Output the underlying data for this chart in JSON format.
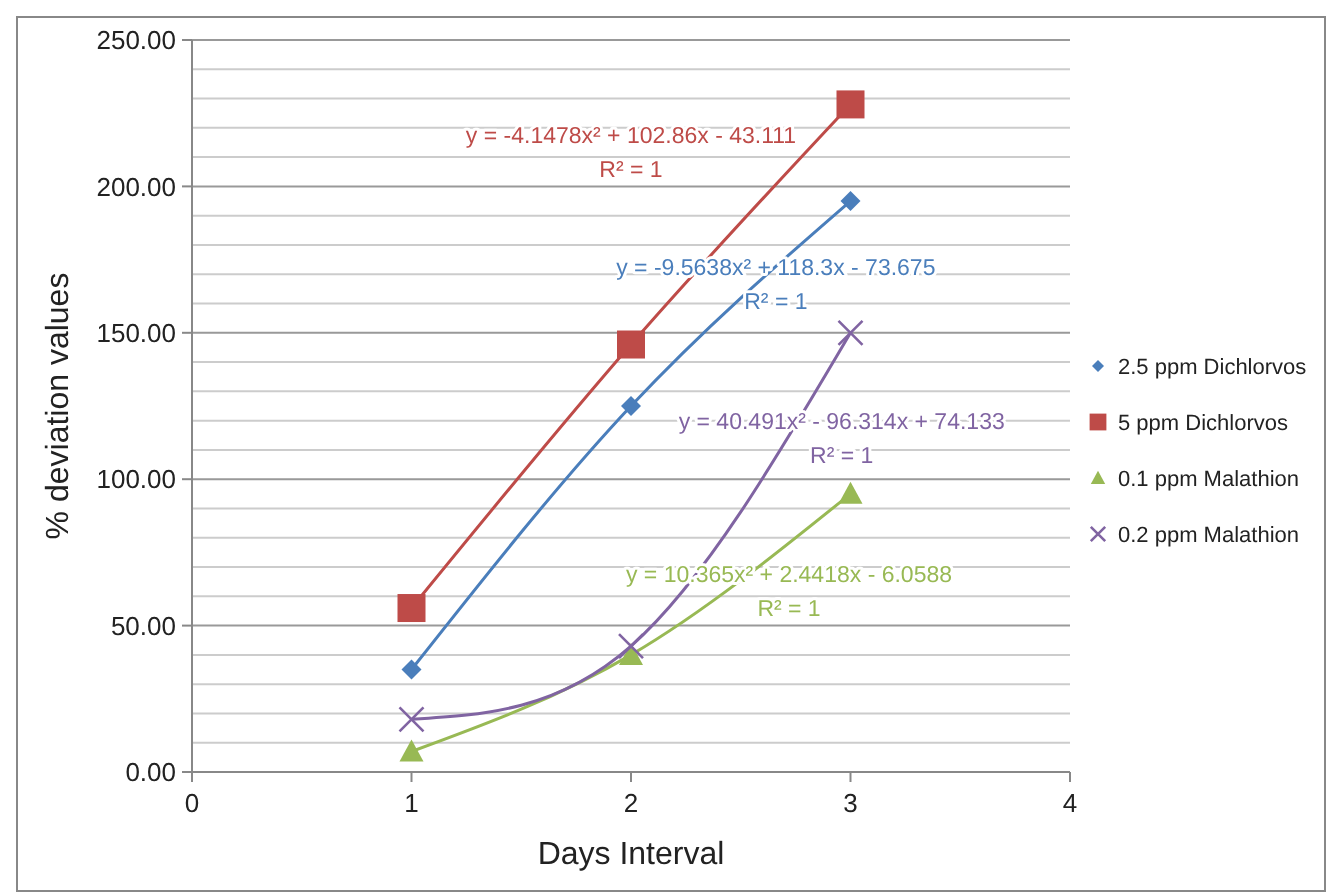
{
  "chart_data": {
    "type": "line",
    "xlabel": "Days Interval",
    "ylabel": "% deviation values",
    "x": [
      1,
      2,
      3
    ],
    "xlim": [
      0,
      4
    ],
    "xticks": [
      0,
      1,
      2,
      3,
      4
    ],
    "ylim": [
      0,
      250
    ],
    "yticks": [
      {
        "value": 0,
        "label": "0.00"
      },
      {
        "value": 50,
        "label": "50.00"
      },
      {
        "value": 100,
        "label": "100.00"
      },
      {
        "value": 150,
        "label": "150.00"
      },
      {
        "value": 200,
        "label": "200.00"
      },
      {
        "value": 250,
        "label": "250.00"
      }
    ],
    "grid": "y",
    "legend": "right",
    "series": [
      {
        "name": "2.5 ppm Dichlorvos",
        "color": "#4a7ebb",
        "marker": "diamond",
        "values": [
          35,
          125,
          195
        ]
      },
      {
        "name": "5 ppm Dichlorvos",
        "color": "#be4b48",
        "marker": "square",
        "values": [
          56,
          146,
          228
        ]
      },
      {
        "name": "0.1 ppm Malathion",
        "color": "#98b954",
        "marker": "triangle",
        "values": [
          7,
          40,
          95
        ]
      },
      {
        "name": "0.2 ppm Malathion",
        "color": "#8064a2",
        "marker": "cross",
        "values": [
          18,
          43,
          150
        ]
      }
    ],
    "annotations": [
      "y = -9.5638x² + 118.3x - 73.675",
      "R² = 1",
      "y = -4.1478x² + 102.86x - 43.111",
      "R² = 1",
      "y = 10.365x² + 2.4418x - 6.0588",
      "R² = 1",
      "y = 40.491x² - 96.314x + 74.133",
      "R² = 1"
    ]
  }
}
